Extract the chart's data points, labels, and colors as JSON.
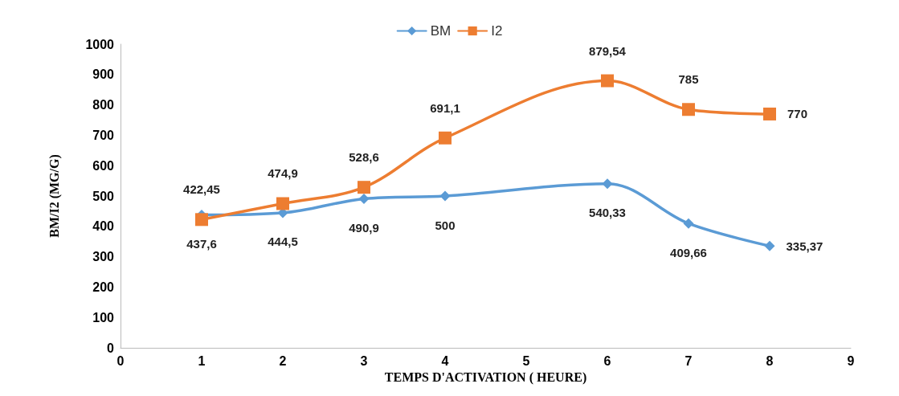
{
  "chart_data": {
    "type": "line",
    "xlabel": "TEMPS D'ACTIVATION ( HEURE)",
    "ylabel": "BM/I2 (MG/G)",
    "xlim": [
      0,
      9
    ],
    "xticks": [
      0,
      1,
      2,
      3,
      4,
      5,
      6,
      7,
      8,
      9
    ],
    "ylim": [
      0,
      1000
    ],
    "yticks": [
      0,
      100,
      200,
      300,
      400,
      500,
      600,
      700,
      800,
      900,
      1000
    ],
    "grid": false,
    "legend": "top",
    "line_style": "solid",
    "series": [
      {
        "name": "BM",
        "color": "#5b9bd5",
        "marker": "diamond",
        "x": [
          1,
          2,
          3,
          4,
          6,
          7,
          8
        ],
        "values": [
          437.6,
          444.5,
          490.9,
          500,
          540.33,
          409.66,
          335.37
        ],
        "value_labels": [
          "437,6",
          "444,5",
          "490,9",
          "500",
          "540,33",
          "409,66",
          "335,37"
        ]
      },
      {
        "name": "I2",
        "color": "#ed7d31",
        "marker": "square",
        "x": [
          1,
          2,
          3,
          4,
          6,
          7,
          8
        ],
        "values": [
          422.45,
          474.9,
          528.6,
          691.1,
          879.54,
          785,
          770
        ],
        "value_labels": [
          "422,45",
          "474,9",
          "528,6",
          "691,1",
          "879,54",
          "785",
          "770"
        ]
      }
    ]
  }
}
